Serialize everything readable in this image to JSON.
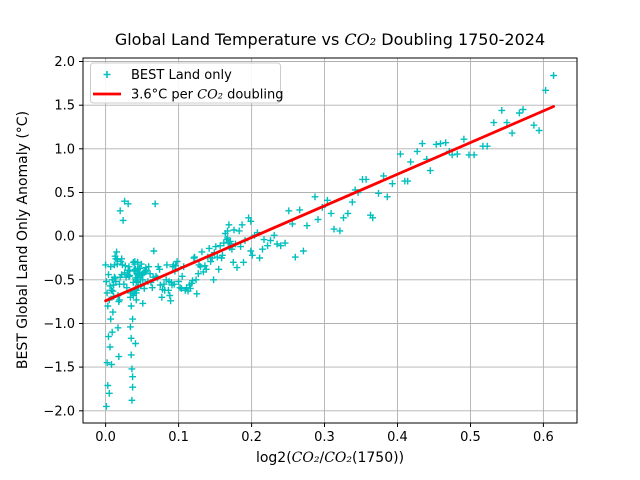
{
  "figure": {
    "background": "#ffffff",
    "grid_color": "#b0b0b0",
    "spine_color": "#000000"
  },
  "chart_data": {
    "type": "scatter",
    "title": "Global Land Temperature vs CO₂ Doubling 1750-2024",
    "xlabel": "log2(CO₂/CO₂(1750))",
    "ylabel": "BEST Global Land Only Anomaly (°C)",
    "xlim": [
      -0.031,
      0.646
    ],
    "ylim": [
      -2.14,
      2.04
    ],
    "grid": true,
    "x_ticks": [
      0.0,
      0.1,
      0.2,
      0.3,
      0.4,
      0.5,
      0.6
    ],
    "x_tick_labels": [
      "0.0",
      "0.1",
      "0.2",
      "0.3",
      "0.4",
      "0.5",
      "0.6"
    ],
    "y_ticks": [
      -2.0,
      -1.5,
      -1.0,
      -0.5,
      0.0,
      0.5,
      1.0,
      1.5,
      2.0
    ],
    "y_tick_labels": [
      "−2.0",
      "−1.5",
      "−1.0",
      "−0.5",
      "0.0",
      "0.5",
      "1.0",
      "1.5",
      "2.0"
    ],
    "legend": {
      "location": "upper left",
      "entries": [
        {
          "type": "marker",
          "symbol": "plus",
          "color": "#00bfbf",
          "label": "BEST Land only"
        },
        {
          "type": "line",
          "color": "#ff0000",
          "label": "3.6°C per CO₂ doubling"
        }
      ]
    },
    "series": [
      {
        "name": "BEST Land only",
        "type": "scatter",
        "marker": "plus",
        "color": "#00bfbf",
        "points": [
          [
            0.0,
            -0.33
          ],
          [
            0.001,
            -0.52
          ],
          [
            0.001,
            -1.95
          ],
          [
            0.002,
            -0.65
          ],
          [
            0.002,
            -1.45
          ],
          [
            0.003,
            -0.8
          ],
          [
            0.003,
            -1.71
          ],
          [
            0.004,
            -0.44
          ],
          [
            0.004,
            -1.15
          ],
          [
            0.005,
            -0.73
          ],
          [
            0.005,
            -1.8
          ],
          [
            0.006,
            -0.57
          ],
          [
            0.006,
            -1.27
          ],
          [
            0.007,
            -0.35
          ],
          [
            0.007,
            -0.95
          ],
          [
            0.008,
            -1.47
          ],
          [
            0.008,
            -0.62
          ],
          [
            0.009,
            -1.1
          ],
          [
            0.009,
            -0.5
          ],
          [
            0.01,
            -0.87
          ],
          [
            0.01,
            -0.63
          ],
          [
            0.011,
            -0.69
          ],
          [
            0.011,
            -0.56
          ],
          [
            0.012,
            -0.47
          ],
          [
            0.012,
            -0.33
          ],
          [
            0.013,
            -0.23
          ],
          [
            0.013,
            -0.48
          ],
          [
            0.014,
            -0.52
          ],
          [
            0.014,
            -0.26
          ],
          [
            0.015,
            -0.18
          ],
          [
            0.016,
            -0.32
          ],
          [
            0.016,
            -0.27
          ],
          [
            0.017,
            -0.68
          ],
          [
            0.017,
            -1.05
          ],
          [
            0.018,
            -1.38
          ],
          [
            0.018,
            -0.75
          ],
          [
            0.019,
            -0.73
          ],
          [
            0.019,
            -0.55
          ],
          [
            0.02,
            0.29
          ],
          [
            0.02,
            -0.47
          ],
          [
            0.021,
            -0.29
          ],
          [
            0.022,
            -0.26
          ],
          [
            0.022,
            -0.44
          ],
          [
            0.023,
            -0.33
          ],
          [
            0.024,
            0.18
          ],
          [
            0.025,
            -0.55
          ],
          [
            0.026,
            0.4
          ],
          [
            0.026,
            -0.42
          ],
          [
            0.027,
            -0.34
          ],
          [
            0.028,
            -0.47
          ],
          [
            0.029,
            -0.59
          ],
          [
            0.03,
            -0.44
          ],
          [
            0.031,
            0.37
          ],
          [
            0.031,
            -0.39
          ],
          [
            0.032,
            -0.46
          ],
          [
            0.032,
            -0.35
          ],
          [
            0.033,
            -0.45
          ],
          [
            0.033,
            -0.4
          ],
          [
            0.034,
            -0.65
          ],
          [
            0.034,
            -0.7
          ],
          [
            0.034,
            -1.04
          ],
          [
            0.035,
            -0.8
          ],
          [
            0.035,
            -1.17
          ],
          [
            0.035,
            -1.36
          ],
          [
            0.036,
            -1.52
          ],
          [
            0.036,
            -1.88
          ],
          [
            0.036,
            -0.65
          ],
          [
            0.037,
            -1.61
          ],
          [
            0.037,
            -1.73
          ],
          [
            0.037,
            -0.95
          ],
          [
            0.038,
            -0.68
          ],
          [
            0.038,
            -0.53
          ],
          [
            0.038,
            -0.3
          ],
          [
            0.039,
            -0.63
          ],
          [
            0.039,
            -0.4
          ],
          [
            0.039,
            -0.39
          ],
          [
            0.04,
            -0.29
          ],
          [
            0.04,
            -0.4
          ],
          [
            0.04,
            -0.32
          ],
          [
            0.04,
            -0.65
          ],
          [
            0.041,
            -0.48
          ],
          [
            0.041,
            -0.61
          ],
          [
            0.041,
            -0.6
          ],
          [
            0.041,
            -1.23
          ],
          [
            0.041,
            -0.38
          ],
          [
            0.042,
            -0.65
          ],
          [
            0.042,
            -0.62
          ],
          [
            0.042,
            -0.73
          ],
          [
            0.042,
            -0.65
          ],
          [
            0.042,
            -0.52
          ],
          [
            0.042,
            -0.5
          ],
          [
            0.043,
            -0.53
          ],
          [
            0.043,
            -0.43
          ],
          [
            0.043,
            -0.4
          ],
          [
            0.043,
            -0.52
          ],
          [
            0.043,
            -0.53
          ],
          [
            0.044,
            -0.3
          ],
          [
            0.044,
            -0.44
          ],
          [
            0.044,
            -0.48
          ],
          [
            0.044,
            -0.38
          ],
          [
            0.045,
            -0.58
          ],
          [
            0.045,
            -0.43
          ],
          [
            0.046,
            -0.37
          ],
          [
            0.046,
            -0.45
          ],
          [
            0.047,
            -0.37
          ],
          [
            0.047,
            -0.42
          ],
          [
            0.048,
            -0.5
          ],
          [
            0.048,
            -0.57
          ],
          [
            0.049,
            -0.45
          ],
          [
            0.049,
            -0.32
          ],
          [
            0.05,
            -0.44
          ],
          [
            0.051,
            -0.5
          ],
          [
            0.051,
            -0.77
          ],
          [
            0.052,
            -0.42
          ],
          [
            0.053,
            -0.6
          ],
          [
            0.053,
            -0.41
          ],
          [
            0.054,
            -0.4
          ],
          [
            0.054,
            -0.4
          ],
          [
            0.055,
            -0.36
          ],
          [
            0.055,
            -0.41
          ],
          [
            0.056,
            -0.39
          ],
          [
            0.058,
            -0.52
          ],
          [
            0.059,
            -0.35
          ],
          [
            0.061,
            -0.43
          ],
          [
            0.062,
            -0.53
          ],
          [
            0.064,
            -0.59
          ],
          [
            0.065,
            -0.47
          ],
          [
            0.066,
            -0.17
          ],
          [
            0.068,
            0.37
          ],
          [
            0.069,
            -0.46
          ],
          [
            0.071,
            -0.48
          ],
          [
            0.072,
            -0.35
          ],
          [
            0.074,
            -0.38
          ],
          [
            0.075,
            -0.56
          ],
          [
            0.077,
            -0.7
          ],
          [
            0.078,
            -0.61
          ],
          [
            0.08,
            -0.55
          ],
          [
            0.081,
            -0.62
          ],
          [
            0.083,
            -0.5
          ],
          [
            0.084,
            -0.33
          ],
          [
            0.086,
            -0.62
          ],
          [
            0.087,
            -0.52
          ],
          [
            0.088,
            -0.68
          ],
          [
            0.089,
            -0.74
          ],
          [
            0.09,
            -0.53
          ],
          [
            0.091,
            -0.56
          ],
          [
            0.092,
            -0.35
          ],
          [
            0.093,
            -0.33
          ],
          [
            0.094,
            -0.55
          ],
          [
            0.095,
            -0.4
          ],
          [
            0.096,
            -0.34
          ],
          [
            0.098,
            -0.29
          ],
          [
            0.1,
            -0.52
          ],
          [
            0.102,
            -0.59
          ],
          [
            0.104,
            -0.6
          ],
          [
            0.105,
            -0.46
          ],
          [
            0.107,
            -0.35
          ],
          [
            0.109,
            -0.62
          ],
          [
            0.111,
            -0.59
          ],
          [
            0.113,
            -0.63
          ],
          [
            0.115,
            -0.56
          ],
          [
            0.116,
            -0.6
          ],
          [
            0.118,
            -0.54
          ],
          [
            0.119,
            -0.51
          ],
          [
            0.121,
            -0.25
          ],
          [
            0.122,
            -0.24
          ],
          [
            0.124,
            -0.5
          ],
          [
            0.125,
            -0.66
          ],
          [
            0.127,
            -0.43
          ],
          [
            0.128,
            -0.33
          ],
          [
            0.13,
            -0.35
          ],
          [
            0.132,
            -0.18
          ],
          [
            0.134,
            -0.41
          ],
          [
            0.136,
            -0.34
          ],
          [
            0.138,
            -0.38
          ],
          [
            0.14,
            -0.24
          ],
          [
            0.142,
            -0.14
          ],
          [
            0.144,
            -0.29
          ],
          [
            0.146,
            -0.25
          ],
          [
            0.148,
            -0.5
          ],
          [
            0.149,
            -0.19
          ],
          [
            0.151,
            -0.12
          ],
          [
            0.153,
            -0.24
          ],
          [
            0.155,
            -0.38
          ],
          [
            0.157,
            -0.11
          ],
          [
            0.159,
            -0.25
          ],
          [
            0.16,
            -0.22
          ],
          [
            0.162,
            -0.08
          ],
          [
            0.164,
            0.03
          ],
          [
            0.166,
            -0.04
          ],
          [
            0.167,
            -0.02
          ],
          [
            0.167,
            0.06
          ],
          [
            0.168,
            -0.07
          ],
          [
            0.169,
            0.13
          ],
          [
            0.169,
            -0.08
          ],
          [
            0.17,
            -0.13
          ],
          [
            0.171,
            -0.06
          ],
          [
            0.172,
            -0.12
          ],
          [
            0.173,
            -0.15
          ],
          [
            0.175,
            -0.3
          ],
          [
            0.176,
            0.07
          ],
          [
            0.178,
            -0.09
          ],
          [
            0.18,
            -0.36
          ],
          [
            0.183,
            0.06
          ],
          [
            0.185,
            -0.12
          ],
          [
            0.187,
            0.13
          ],
          [
            0.189,
            -0.3
          ],
          [
            0.191,
            -0.05
          ],
          [
            0.196,
            0.21
          ],
          [
            0.199,
            0.17
          ],
          [
            0.199,
            -0.17
          ],
          [
            0.201,
            -0.22
          ],
          [
            0.204,
            0.01
          ],
          [
            0.208,
            0.04
          ],
          [
            0.211,
            -0.25
          ],
          [
            0.215,
            -0.15
          ],
          [
            0.217,
            -0.04
          ],
          [
            0.222,
            -0.11
          ],
          [
            0.226,
            -0.05
          ],
          [
            0.231,
            0.01
          ],
          [
            0.235,
            -0.09
          ],
          [
            0.24,
            -0.11
          ],
          [
            0.246,
            -0.08
          ],
          [
            0.251,
            0.29
          ],
          [
            0.256,
            0.14
          ],
          [
            0.26,
            -0.24
          ],
          [
            0.266,
            0.3
          ],
          [
            0.271,
            -0.17
          ],
          [
            0.276,
            0.12
          ],
          [
            0.287,
            0.45
          ],
          [
            0.291,
            0.19
          ],
          [
            0.297,
            0.33
          ],
          [
            0.304,
            0.41
          ],
          [
            0.309,
            0.26
          ],
          [
            0.313,
            0.08
          ],
          [
            0.321,
            0.06
          ],
          [
            0.326,
            0.21
          ],
          [
            0.332,
            0.26
          ],
          [
            0.338,
            0.39
          ],
          [
            0.342,
            0.53
          ],
          [
            0.346,
            0.5
          ],
          [
            0.352,
            0.65
          ],
          [
            0.357,
            0.65
          ],
          [
            0.363,
            0.24
          ],
          [
            0.366,
            0.21
          ],
          [
            0.374,
            0.49
          ],
          [
            0.381,
            0.69
          ],
          [
            0.386,
            0.45
          ],
          [
            0.393,
            0.6
          ],
          [
            0.404,
            0.94
          ],
          [
            0.41,
            0.63
          ],
          [
            0.414,
            0.63
          ],
          [
            0.418,
            0.85
          ],
          [
            0.427,
            0.97
          ],
          [
            0.434,
            1.06
          ],
          [
            0.44,
            0.88
          ],
          [
            0.445,
            0.75
          ],
          [
            0.453,
            1.05
          ],
          [
            0.459,
            1.06
          ],
          [
            0.466,
            1.07
          ],
          [
            0.471,
            0.97
          ],
          [
            0.475,
            0.93
          ],
          [
            0.482,
            0.94
          ],
          [
            0.491,
            1.11
          ],
          [
            0.498,
            0.93
          ],
          [
            0.505,
            0.93
          ],
          [
            0.517,
            1.03
          ],
          [
            0.523,
            1.03
          ],
          [
            0.532,
            1.3
          ],
          [
            0.543,
            1.44
          ],
          [
            0.55,
            1.3
          ],
          [
            0.557,
            1.18
          ],
          [
            0.567,
            1.41
          ],
          [
            0.572,
            1.45
          ],
          [
            0.587,
            1.27
          ],
          [
            0.594,
            1.21
          ],
          [
            0.603,
            1.67
          ],
          [
            0.614,
            1.84
          ]
        ]
      },
      {
        "name": "3.6°C per CO₂ doubling",
        "type": "line",
        "color": "#ff0000",
        "slope_c_per_doubling": 3.6,
        "endpoints": [
          [
            0.0,
            -0.74
          ],
          [
            0.614,
            1.485
          ]
        ]
      }
    ]
  }
}
